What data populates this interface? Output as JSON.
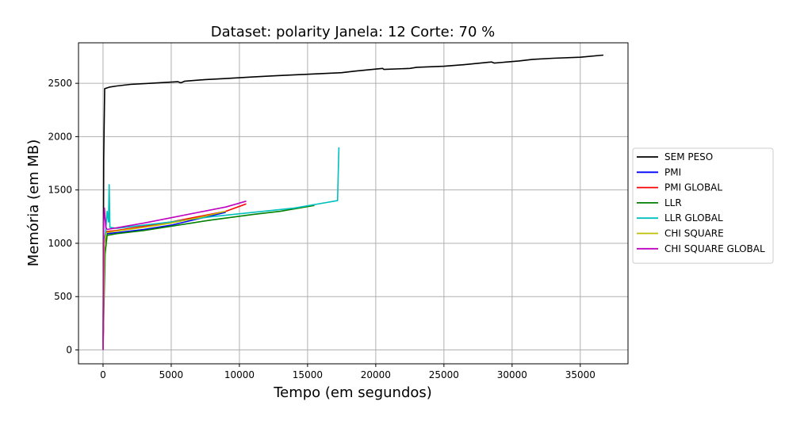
{
  "chart_data": {
    "type": "line",
    "title": "Dataset: polarity Janela: 12 Corte: 70 %",
    "xlabel": "Tempo (em segundos)",
    "ylabel": "Memória (em MB)",
    "xlim": [
      -1800,
      38500
    ],
    "ylim": [
      -130,
      2880
    ],
    "xticks": [
      0,
      5000,
      10000,
      15000,
      20000,
      25000,
      30000,
      35000
    ],
    "yticks": [
      0,
      500,
      1000,
      1500,
      2000,
      2500
    ],
    "grid": true,
    "legend_position": "right",
    "series": [
      {
        "name": "SEM PESO",
        "color": "#000000",
        "points": [
          [
            0,
            0
          ],
          [
            50,
            1800
          ],
          [
            120,
            2450
          ],
          [
            500,
            2465
          ],
          [
            1000,
            2475
          ],
          [
            2000,
            2490
          ],
          [
            3500,
            2500
          ],
          [
            5500,
            2515
          ],
          [
            5700,
            2505
          ],
          [
            6000,
            2520
          ],
          [
            7500,
            2535
          ],
          [
            9000,
            2545
          ],
          [
            11000,
            2560
          ],
          [
            12500,
            2570
          ],
          [
            15000,
            2585
          ],
          [
            17500,
            2600
          ],
          [
            18500,
            2615
          ],
          [
            20500,
            2640
          ],
          [
            20600,
            2630
          ],
          [
            22500,
            2640
          ],
          [
            23000,
            2650
          ],
          [
            25000,
            2660
          ],
          [
            26500,
            2675
          ],
          [
            28500,
            2700
          ],
          [
            28700,
            2690
          ],
          [
            30500,
            2710
          ],
          [
            31500,
            2725
          ],
          [
            33000,
            2735
          ],
          [
            35000,
            2745
          ],
          [
            36700,
            2765
          ]
        ]
      },
      {
        "name": "PMI",
        "color": "#0000ff",
        "points": [
          [
            0,
            0
          ],
          [
            100,
            1000
          ],
          [
            300,
            1090
          ],
          [
            1000,
            1100
          ],
          [
            3000,
            1130
          ],
          [
            5000,
            1170
          ],
          [
            7000,
            1230
          ],
          [
            9000,
            1290
          ]
        ]
      },
      {
        "name": "PMI GLOBAL",
        "color": "#ff0000",
        "points": [
          [
            0,
            0
          ],
          [
            100,
            1050
          ],
          [
            250,
            1110
          ],
          [
            1000,
            1120
          ],
          [
            3000,
            1160
          ],
          [
            5000,
            1200
          ],
          [
            7000,
            1250
          ],
          [
            9000,
            1300
          ],
          [
            10500,
            1370
          ]
        ]
      },
      {
        "name": "LLR",
        "color": "#008000",
        "points": [
          [
            0,
            0
          ],
          [
            150,
            900
          ],
          [
            300,
            1075
          ],
          [
            1000,
            1090
          ],
          [
            3000,
            1120
          ],
          [
            5000,
            1160
          ],
          [
            8000,
            1220
          ],
          [
            11000,
            1270
          ],
          [
            13000,
            1300
          ],
          [
            15500,
            1355
          ]
        ]
      },
      {
        "name": "LLR GLOBAL",
        "color": "#00bfbf",
        "points": [
          [
            0,
            0
          ],
          [
            80,
            1000
          ],
          [
            200,
            1120
          ],
          [
            300,
            1300
          ],
          [
            400,
            1200
          ],
          [
            450,
            1550
          ],
          [
            500,
            1150
          ],
          [
            1000,
            1140
          ],
          [
            3000,
            1170
          ],
          [
            5000,
            1200
          ],
          [
            8000,
            1250
          ],
          [
            11000,
            1290
          ],
          [
            14000,
            1330
          ],
          [
            17200,
            1400
          ],
          [
            17300,
            1900
          ]
        ]
      },
      {
        "name": "CHI SQUARE",
        "color": "#bfbf00",
        "points": [
          [
            0,
            0
          ],
          [
            100,
            1000
          ],
          [
            250,
            1100
          ],
          [
            1000,
            1115
          ],
          [
            3000,
            1150
          ],
          [
            5000,
            1190
          ],
          [
            7000,
            1240
          ],
          [
            9000,
            1300
          ]
        ]
      },
      {
        "name": "CHI SQUARE GLOBAL",
        "color": "#bf00bf",
        "points": [
          [
            0,
            0
          ],
          [
            50,
            1200
          ],
          [
            100,
            1330
          ],
          [
            200,
            1150
          ],
          [
            300,
            1130
          ],
          [
            1000,
            1145
          ],
          [
            3000,
            1190
          ],
          [
            5000,
            1240
          ],
          [
            7000,
            1290
          ],
          [
            9000,
            1340
          ],
          [
            10500,
            1395
          ]
        ]
      }
    ]
  }
}
